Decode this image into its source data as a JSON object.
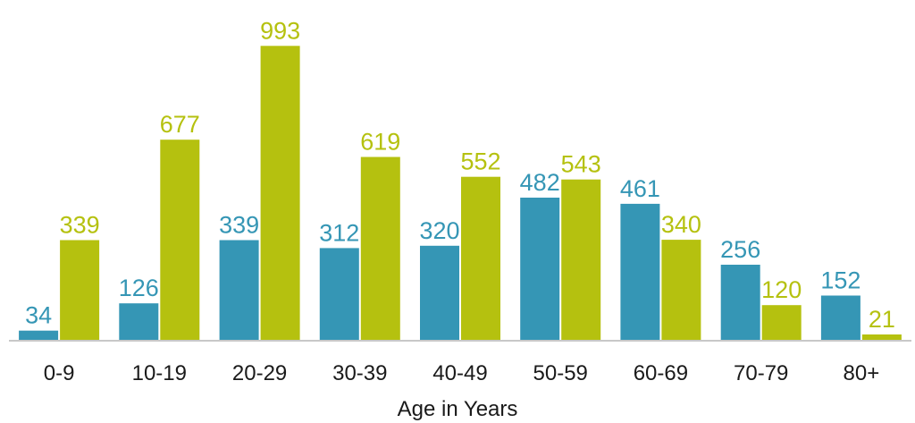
{
  "chart_data": {
    "type": "bar",
    "categories": [
      "0-9",
      "10-19",
      "20-29",
      "30-39",
      "40-49",
      "50-59",
      "60-69",
      "70-79",
      "80+"
    ],
    "series": [
      {
        "values": [
          34,
          126,
          339,
          312,
          320,
          482,
          461,
          256,
          152
        ],
        "color": "#3596b5"
      },
      {
        "values": [
          339,
          677,
          993,
          619,
          552,
          543,
          340,
          120,
          21
        ],
        "color": "#b5c10f"
      }
    ],
    "title": "",
    "xlabel": "Age in Years",
    "ylabel": "",
    "ylim": [
      0,
      1000
    ],
    "grid": false,
    "legend": "none",
    "data_labels": true,
    "axis_color": "#c8c8c8"
  }
}
